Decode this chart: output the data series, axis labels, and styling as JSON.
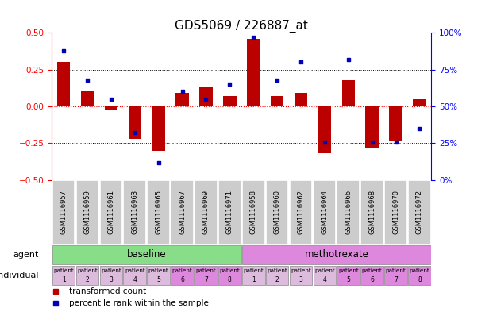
{
  "title": "GDS5069 / 226887_at",
  "samples": [
    "GSM1116957",
    "GSM1116959",
    "GSM1116961",
    "GSM1116963",
    "GSM1116965",
    "GSM1116967",
    "GSM1116969",
    "GSM1116971",
    "GSM1116958",
    "GSM1116960",
    "GSM1116962",
    "GSM1116964",
    "GSM1116966",
    "GSM1116968",
    "GSM1116970",
    "GSM1116972"
  ],
  "transformed_count": [
    0.3,
    0.1,
    -0.02,
    -0.22,
    -0.3,
    0.09,
    0.13,
    0.07,
    0.46,
    0.07,
    0.09,
    -0.32,
    0.18,
    -0.28,
    -0.23,
    0.05
  ],
  "percentile_rank": [
    88,
    68,
    55,
    32,
    12,
    60,
    55,
    65,
    97,
    68,
    80,
    26,
    82,
    26,
    26,
    35
  ],
  "bar_color": "#bb0000",
  "dot_color": "#0000bb",
  "ylim_left": [
    -0.5,
    0.5
  ],
  "ylim_right": [
    0,
    100
  ],
  "yticks_left": [
    -0.5,
    -0.25,
    0,
    0.25,
    0.5
  ],
  "yticks_right": [
    0,
    25,
    50,
    75,
    100
  ],
  "agent_labels": [
    "baseline",
    "methotrexate"
  ],
  "agent_colors": [
    "#88dd88",
    "#dd88dd"
  ],
  "individual_colors_baseline": [
    "#ddbbdd",
    "#ddbbdd",
    "#ddbbdd",
    "#ddbbdd",
    "#ddbbdd",
    "#dd88dd",
    "#dd88dd",
    "#dd88dd"
  ],
  "individual_colors_methotrexate": [
    "#ddbbdd",
    "#ddbbdd",
    "#ddbbdd",
    "#ddbbdd",
    "#dd88dd",
    "#dd88dd",
    "#dd88dd",
    "#dd88dd"
  ],
  "legend_items": [
    "transformed count",
    "percentile rank within the sample"
  ],
  "legend_colors": [
    "#bb0000",
    "#0000bb"
  ],
  "title_fontsize": 11,
  "tick_fontsize": 7,
  "sample_fontsize": 6,
  "label_fontsize": 8
}
